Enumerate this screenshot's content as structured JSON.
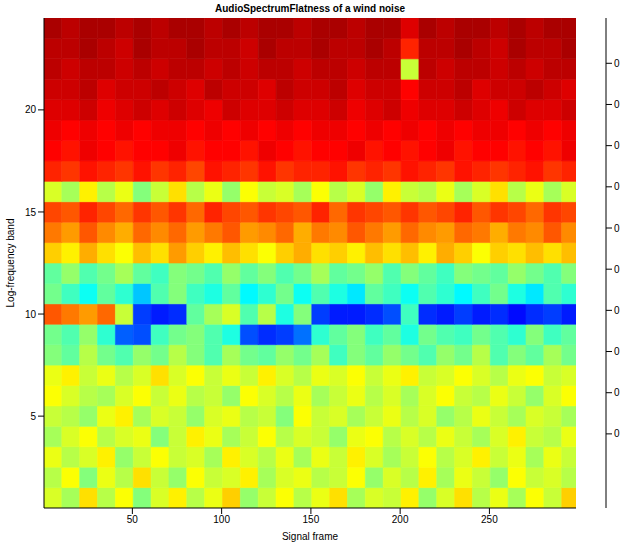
{
  "chart_data": {
    "type": "heatmap",
    "title": "AudioSpectrumFlatness of a wind noise",
    "x_label": "Signal frame",
    "y_label": "Log-frequency band",
    "x_edges": [
      0.5,
      10.5,
      20.5,
      30.5,
      40.5,
      50.5,
      60.5,
      70.5,
      80.5,
      90.5,
      100.5,
      110.5,
      120.5,
      130.5,
      140.5,
      150.5,
      160.5,
      170.5,
      180.5,
      190.5,
      200.5,
      210.5,
      220.5,
      230.5,
      240.5,
      250.5,
      260.5,
      270.5,
      280.5,
      290.5,
      298.5
    ],
    "y": [
      1,
      2,
      3,
      4,
      5,
      6,
      7,
      8,
      9,
      10,
      11,
      12,
      13,
      14,
      15,
      16,
      17,
      18,
      19,
      20,
      21,
      22,
      23,
      24
    ],
    "cells": [
      [
        0.31,
        0.28,
        0.35,
        0.29,
        0.33,
        0.26,
        0.31,
        0.34,
        0.29,
        0.32,
        0.36,
        0.27,
        0.3,
        0.33,
        0.29,
        0.32,
        0.35,
        0.28,
        0.31,
        0.3,
        0.34,
        0.27,
        0.31,
        0.35,
        0.29,
        0.32,
        0.28,
        0.33,
        0.3,
        0.36
      ],
      [
        0.29,
        0.33,
        0.26,
        0.32,
        0.29,
        0.35,
        0.3,
        0.27,
        0.33,
        0.3,
        0.31,
        0.34,
        0.28,
        0.31,
        0.32,
        0.29,
        0.3,
        0.33,
        0.27,
        0.31,
        0.29,
        0.34,
        0.28,
        0.32,
        0.3,
        0.27,
        0.33,
        0.3,
        0.31,
        0.29
      ],
      [
        0.32,
        0.29,
        0.31,
        0.34,
        0.27,
        0.3,
        0.33,
        0.3,
        0.31,
        0.28,
        0.34,
        0.31,
        0.29,
        0.32,
        0.28,
        0.32,
        0.3,
        0.34,
        0.31,
        0.28,
        0.3,
        0.33,
        0.29,
        0.31,
        0.34,
        0.3,
        0.32,
        0.28,
        0.32,
        0.3
      ],
      [
        0.28,
        0.31,
        0.33,
        0.29,
        0.31,
        0.32,
        0.26,
        0.3,
        0.34,
        0.32,
        0.28,
        0.3,
        0.33,
        0.29,
        0.31,
        0.3,
        0.27,
        0.32,
        0.33,
        0.29,
        0.31,
        0.29,
        0.32,
        0.3,
        0.28,
        0.31,
        0.34,
        0.3,
        0.29,
        0.32
      ],
      [
        0.3,
        0.29,
        0.27,
        0.32,
        0.34,
        0.28,
        0.31,
        0.3,
        0.27,
        0.31,
        0.32,
        0.29,
        0.3,
        0.26,
        0.33,
        0.3,
        0.31,
        0.28,
        0.3,
        0.32,
        0.29,
        0.31,
        0.27,
        0.29,
        0.32,
        0.3,
        0.28,
        0.31,
        0.3,
        0.28
      ],
      [
        0.33,
        0.31,
        0.29,
        0.28,
        0.31,
        0.33,
        0.3,
        0.32,
        0.29,
        0.3,
        0.27,
        0.33,
        0.31,
        0.29,
        0.32,
        0.28,
        0.3,
        0.32,
        0.29,
        0.31,
        0.28,
        0.31,
        0.33,
        0.3,
        0.29,
        0.32,
        0.3,
        0.27,
        0.31,
        0.33
      ],
      [
        0.32,
        0.34,
        0.3,
        0.32,
        0.29,
        0.31,
        0.35,
        0.31,
        0.33,
        0.3,
        0.32,
        0.3,
        0.34,
        0.31,
        0.29,
        0.32,
        0.31,
        0.33,
        0.3,
        0.32,
        0.34,
        0.3,
        0.31,
        0.33,
        0.31,
        0.29,
        0.32,
        0.33,
        0.3,
        0.31
      ],
      [
        0.26,
        0.24,
        0.29,
        0.25,
        0.23,
        0.27,
        0.25,
        0.29,
        0.26,
        0.23,
        0.28,
        0.25,
        0.24,
        0.27,
        0.25,
        0.28,
        0.22,
        0.26,
        0.24,
        0.27,
        0.25,
        0.23,
        0.27,
        0.25,
        0.29,
        0.23,
        0.26,
        0.24,
        0.28,
        0.25
      ],
      [
        0.25,
        0.23,
        0.27,
        0.21,
        0.09,
        0.08,
        0.22,
        0.25,
        0.26,
        0.23,
        0.2,
        0.08,
        0.06,
        0.07,
        0.1,
        0.21,
        0.24,
        0.26,
        0.22,
        0.24,
        0.2,
        0.25,
        0.23,
        0.22,
        0.25,
        0.23,
        0.21,
        0.26,
        0.22,
        0.24
      ],
      [
        0.43,
        0.41,
        0.39,
        0.42,
        0.3,
        0.07,
        0.05,
        0.06,
        0.24,
        0.28,
        0.31,
        0.23,
        0.29,
        0.2,
        0.26,
        0.07,
        0.05,
        0.05,
        0.06,
        0.08,
        0.22,
        0.06,
        0.05,
        0.07,
        0.05,
        0.06,
        0.04,
        0.06,
        0.07,
        0.05
      ],
      [
        0.25,
        0.22,
        0.19,
        0.24,
        0.21,
        0.15,
        0.23,
        0.26,
        0.22,
        0.2,
        0.24,
        0.18,
        0.21,
        0.25,
        0.19,
        0.23,
        0.2,
        0.17,
        0.24,
        0.22,
        0.19,
        0.23,
        0.21,
        0.18,
        0.22,
        0.25,
        0.2,
        0.17,
        0.23,
        0.21
      ],
      [
        0.24,
        0.27,
        0.23,
        0.25,
        0.28,
        0.24,
        0.22,
        0.26,
        0.25,
        0.23,
        0.27,
        0.24,
        0.26,
        0.23,
        0.25,
        0.28,
        0.24,
        0.25,
        0.27,
        0.23,
        0.26,
        0.24,
        0.22,
        0.26,
        0.25,
        0.24,
        0.27,
        0.25,
        0.23,
        0.26
      ],
      [
        0.36,
        0.34,
        0.38,
        0.35,
        0.33,
        0.37,
        0.35,
        0.39,
        0.36,
        0.34,
        0.37,
        0.35,
        0.33,
        0.36,
        0.38,
        0.35,
        0.36,
        0.34,
        0.37,
        0.35,
        0.37,
        0.34,
        0.38,
        0.36,
        0.33,
        0.36,
        0.35,
        0.37,
        0.35,
        0.37
      ],
      [
        0.41,
        0.39,
        0.43,
        0.4,
        0.38,
        0.42,
        0.4,
        0.42,
        0.39,
        0.41,
        0.43,
        0.39,
        0.4,
        0.42,
        0.38,
        0.41,
        0.4,
        0.43,
        0.41,
        0.39,
        0.42,
        0.4,
        0.39,
        0.42,
        0.41,
        0.38,
        0.41,
        0.4,
        0.43,
        0.4
      ],
      [
        0.44,
        0.43,
        0.46,
        0.44,
        0.42,
        0.45,
        0.43,
        0.45,
        0.42,
        0.46,
        0.44,
        0.43,
        0.45,
        0.44,
        0.43,
        0.46,
        0.42,
        0.45,
        0.44,
        0.43,
        0.45,
        0.43,
        0.44,
        0.46,
        0.43,
        0.45,
        0.44,
        0.42,
        0.45,
        0.44
      ],
      [
        0.31,
        0.28,
        0.34,
        0.29,
        0.32,
        0.26,
        0.3,
        0.35,
        0.29,
        0.32,
        0.27,
        0.33,
        0.3,
        0.31,
        0.28,
        0.33,
        0.29,
        0.31,
        0.27,
        0.34,
        0.3,
        0.29,
        0.32,
        0.28,
        0.31,
        0.35,
        0.29,
        0.32,
        0.28,
        0.31
      ],
      [
        0.46,
        0.45,
        0.47,
        0.46,
        0.45,
        0.47,
        0.45,
        0.46,
        0.44,
        0.47,
        0.46,
        0.45,
        0.47,
        0.45,
        0.46,
        0.46,
        0.47,
        0.45,
        0.46,
        0.45,
        0.47,
        0.46,
        0.45,
        0.47,
        0.46,
        0.45,
        0.46,
        0.47,
        0.45,
        0.46
      ],
      [
        0.48,
        0.47,
        0.49,
        0.48,
        0.47,
        0.48,
        0.48,
        0.49,
        0.47,
        0.48,
        0.48,
        0.47,
        0.49,
        0.48,
        0.47,
        0.48,
        0.48,
        0.49,
        0.47,
        0.48,
        0.47,
        0.48,
        0.49,
        0.47,
        0.48,
        0.48,
        0.47,
        0.48,
        0.47,
        0.49
      ],
      [
        0.49,
        0.48,
        0.49,
        0.48,
        0.49,
        0.48,
        0.49,
        0.49,
        0.48,
        0.49,
        0.48,
        0.49,
        0.48,
        0.49,
        0.48,
        0.49,
        0.49,
        0.48,
        0.49,
        0.48,
        0.49,
        0.48,
        0.49,
        0.48,
        0.49,
        0.49,
        0.48,
        0.49,
        0.48,
        0.49
      ],
      [
        0.5,
        0.5,
        0.51,
        0.49,
        0.5,
        0.51,
        0.5,
        0.51,
        0.5,
        0.49,
        0.51,
        0.5,
        0.5,
        0.51,
        0.5,
        0.5,
        0.51,
        0.49,
        0.5,
        0.51,
        0.49,
        0.5,
        0.5,
        0.51,
        0.5,
        0.49,
        0.51,
        0.5,
        0.5,
        0.51
      ],
      [
        0.51,
        0.51,
        0.52,
        0.5,
        0.51,
        0.51,
        0.52,
        0.51,
        0.5,
        0.52,
        0.51,
        0.51,
        0.5,
        0.52,
        0.51,
        0.51,
        0.52,
        0.5,
        0.51,
        0.51,
        0.48,
        0.51,
        0.51,
        0.52,
        0.5,
        0.51,
        0.51,
        0.52,
        0.51,
        0.5
      ],
      [
        0.52,
        0.51,
        0.52,
        0.52,
        0.51,
        0.52,
        0.51,
        0.52,
        0.52,
        0.51,
        0.52,
        0.51,
        0.52,
        0.52,
        0.51,
        0.52,
        0.52,
        0.51,
        0.52,
        0.52,
        0.3,
        0.52,
        0.51,
        0.52,
        0.52,
        0.51,
        0.52,
        0.51,
        0.52,
        0.52
      ],
      [
        0.52,
        0.52,
        0.53,
        0.52,
        0.51,
        0.53,
        0.52,
        0.52,
        0.53,
        0.52,
        0.52,
        0.51,
        0.53,
        0.52,
        0.52,
        0.53,
        0.52,
        0.52,
        0.53,
        0.52,
        0.46,
        0.52,
        0.52,
        0.53,
        0.52,
        0.51,
        0.53,
        0.52,
        0.52,
        0.53
      ],
      [
        0.53,
        0.52,
        0.53,
        0.53,
        0.52,
        0.53,
        0.52,
        0.53,
        0.53,
        0.52,
        0.53,
        0.52,
        0.53,
        0.53,
        0.52,
        0.53,
        0.53,
        0.52,
        0.53,
        0.53,
        0.5,
        0.53,
        0.52,
        0.53,
        0.53,
        0.52,
        0.53,
        0.52,
        0.53,
        0.53
      ]
    ],
    "xlim": [
      0.5,
      298.5
    ],
    "xticks": [
      50,
      100,
      150,
      200,
      250
    ],
    "ylim": [
      0.5,
      24.5
    ],
    "yticks": [
      5,
      10,
      15,
      20
    ],
    "colorbar": {
      "range": [
        -0.04,
        0.555
      ],
      "ticks": [
        {
          "value": 0.05,
          "label": "0"
        },
        {
          "value": 0.1,
          "label": "0"
        },
        {
          "value": 0.15,
          "label": "0"
        },
        {
          "value": 0.2,
          "label": "0"
        },
        {
          "value": 0.25,
          "label": "0"
        },
        {
          "value": 0.3,
          "label": "0"
        },
        {
          "value": 0.35,
          "label": "0"
        },
        {
          "value": 0.4,
          "label": "0"
        },
        {
          "value": 0.45,
          "label": "0"
        },
        {
          "value": 0.5,
          "label": "0"
        }
      ]
    }
  }
}
